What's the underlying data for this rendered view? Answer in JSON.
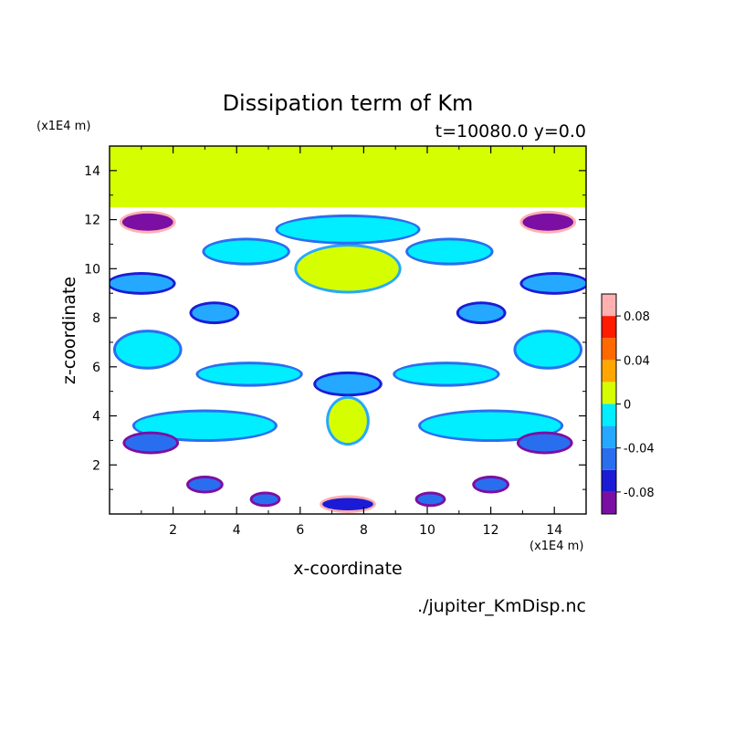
{
  "chart_data": {
    "type": "heatmap",
    "title": "Dissipation term of Km",
    "subtitle": "t=10080.0 y=0.0",
    "xlabel": "x-coordinate",
    "ylabel": "z-coordinate",
    "x_unit": "(x1E4 m)",
    "y_unit": "(x1E4 m)",
    "footer": "./jupiter_KmDisp.nc",
    "xlim": [
      0,
      15
    ],
    "ylim": [
      0,
      15
    ],
    "x_ticks": [
      "2",
      "4",
      "6",
      "8",
      "10",
      "12",
      "14"
    ],
    "y_ticks": [
      "2",
      "4",
      "6",
      "8",
      "10",
      "12",
      "14"
    ],
    "colorbar": {
      "ticks": [
        "0.08",
        "0.04",
        "0",
        "-0.04",
        "-0.08"
      ],
      "levels": [
        {
          "min": -0.1,
          "max": -0.08,
          "color": "#7b0fa3"
        },
        {
          "min": -0.08,
          "max": -0.06,
          "color": "#1b1bd6"
        },
        {
          "min": -0.06,
          "max": -0.04,
          "color": "#2a6ef0"
        },
        {
          "min": -0.04,
          "max": -0.02,
          "color": "#25a8ff"
        },
        {
          "min": -0.02,
          "max": 0.0,
          "color": "#00eeff"
        },
        {
          "min": 0.0,
          "max": 0.02,
          "color": "#d5ff00"
        },
        {
          "min": 0.02,
          "max": 0.04,
          "color": "#ffa600"
        },
        {
          "min": 0.04,
          "max": 0.06,
          "color": "#ff6a00"
        },
        {
          "min": 0.06,
          "max": 0.08,
          "color": "#ff1a00"
        },
        {
          "min": 0.08,
          "max": 0.1,
          "color": "#ffb0b0"
        }
      ]
    },
    "regions": {
      "top_layer": {
        "z_min": 12.5,
        "z_max": 15,
        "value": 0.01
      },
      "blobs": [
        {
          "x": 7.5,
          "z": 10.0,
          "rx": 1.6,
          "rz": 0.9,
          "value": 0.01
        },
        {
          "x": 7.5,
          "z": 11.6,
          "rx": 2.2,
          "rz": 0.5,
          "value": -0.01
        },
        {
          "x": 4.3,
          "z": 10.7,
          "rx": 1.3,
          "rz": 0.45,
          "value": -0.01
        },
        {
          "x": 10.7,
          "z": 10.7,
          "rx": 1.3,
          "rz": 0.45,
          "value": -0.01
        },
        {
          "x": 1.2,
          "z": 11.9,
          "rx": 0.8,
          "rz": 0.35,
          "value": -0.09
        },
        {
          "x": 13.8,
          "z": 11.9,
          "rx": 0.8,
          "rz": 0.35,
          "value": -0.09
        },
        {
          "x": 1.0,
          "z": 9.4,
          "rx": 1.0,
          "rz": 0.35,
          "value": -0.03
        },
        {
          "x": 14.0,
          "z": 9.4,
          "rx": 1.0,
          "rz": 0.35,
          "value": -0.03
        },
        {
          "x": 3.3,
          "z": 8.2,
          "rx": 0.7,
          "rz": 0.35,
          "value": -0.03
        },
        {
          "x": 11.7,
          "z": 8.2,
          "rx": 0.7,
          "rz": 0.35,
          "value": -0.03
        },
        {
          "x": 1.2,
          "z": 6.7,
          "rx": 1.0,
          "rz": 0.7,
          "value": -0.01
        },
        {
          "x": 13.8,
          "z": 6.7,
          "rx": 1.0,
          "rz": 0.7,
          "value": -0.01
        },
        {
          "x": 4.4,
          "z": 5.7,
          "rx": 1.6,
          "rz": 0.4,
          "value": -0.02
        },
        {
          "x": 10.6,
          "z": 5.7,
          "rx": 1.6,
          "rz": 0.4,
          "value": -0.02
        },
        {
          "x": 7.5,
          "z": 5.3,
          "rx": 1.0,
          "rz": 0.4,
          "value": -0.03
        },
        {
          "x": 3.0,
          "z": 3.6,
          "rx": 2.2,
          "rz": 0.55,
          "value": -0.01
        },
        {
          "x": 12.0,
          "z": 3.6,
          "rx": 2.2,
          "rz": 0.55,
          "value": -0.01
        },
        {
          "x": 7.5,
          "z": 3.8,
          "rx": 0.6,
          "rz": 0.9,
          "value": 0.01
        },
        {
          "x": 1.3,
          "z": 2.9,
          "rx": 0.8,
          "rz": 0.35,
          "value": -0.05
        },
        {
          "x": 13.7,
          "z": 2.9,
          "rx": 0.8,
          "rz": 0.35,
          "value": -0.05
        },
        {
          "x": 3.0,
          "z": 1.2,
          "rx": 0.5,
          "rz": 0.25,
          "value": -0.05
        },
        {
          "x": 12.0,
          "z": 1.2,
          "rx": 0.5,
          "rz": 0.25,
          "value": -0.05
        },
        {
          "x": 7.5,
          "z": 0.4,
          "rx": 0.8,
          "rz": 0.25,
          "value": -0.07
        },
        {
          "x": 4.9,
          "z": 0.6,
          "rx": 0.4,
          "rz": 0.2,
          "value": -0.05
        },
        {
          "x": 10.1,
          "z": 0.6,
          "rx": 0.4,
          "rz": 0.2,
          "value": -0.05
        }
      ]
    }
  }
}
